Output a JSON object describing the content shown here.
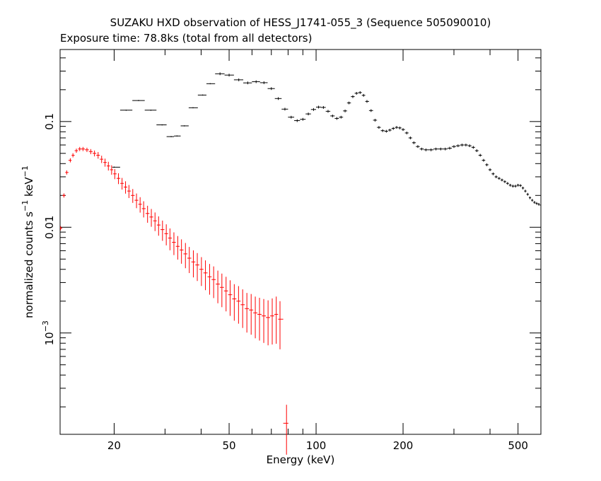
{
  "chart_data": {
    "type": "scatter",
    "title": "SUZAKU HXD observation of HESS_J1741-055_3 (Sequence 505090010)",
    "subtitle": "Exposure time: 78.8ks (total from all detectors)",
    "xlabel": "Energy (keV)",
    "ylabel": {
      "main": "normalized counts s",
      "exp1": "−1",
      "mid": " keV",
      "exp2": "−1"
    },
    "x_scale": "log",
    "y_scale": "log",
    "xlim": [
      13.0,
      600.0
    ],
    "ylim": [
      0.00011,
      0.48
    ],
    "x_ticks": [
      {
        "value": 20,
        "label": "20"
      },
      {
        "value": 50,
        "label": "50"
      },
      {
        "value": 100,
        "label": "100"
      },
      {
        "value": 200,
        "label": "200"
      },
      {
        "value": 500,
        "label": "500"
      }
    ],
    "y_ticks": [
      {
        "value": 0.1,
        "label": "0.1"
      },
      {
        "value": 0.01,
        "label": "0.01"
      },
      {
        "value": 0.001,
        "label_base": "10",
        "label_exp": "−3"
      }
    ],
    "grid": false,
    "colors": {
      "gso": "#000000",
      "pin": "#ff0000"
    },
    "series": [
      {
        "color": "#000000",
        "points": [
          [
            20.0,
            0.037
          ],
          [
            22.0,
            0.128
          ],
          [
            24.3,
            0.158
          ],
          [
            26.8,
            0.128
          ],
          [
            29.3,
            0.093
          ],
          [
            31.5,
            0.072
          ],
          [
            33.0,
            0.073
          ],
          [
            35.0,
            0.091
          ],
          [
            37.5,
            0.135
          ],
          [
            40.5,
            0.178
          ],
          [
            43.0,
            0.228
          ],
          [
            46.5,
            0.283
          ],
          [
            50.0,
            0.275
          ],
          [
            54.0,
            0.248
          ],
          [
            58.0,
            0.232
          ],
          [
            62.0,
            0.238
          ],
          [
            66.0,
            0.233
          ],
          [
            70.0,
            0.205
          ],
          [
            74.0,
            0.165
          ],
          [
            78.0,
            0.131
          ],
          [
            82.0,
            0.11
          ],
          [
            86.0,
            0.102
          ],
          [
            90.0,
            0.105
          ],
          [
            94.0,
            0.118
          ],
          [
            98.0,
            0.13
          ],
          [
            102.0,
            0.137
          ],
          [
            106.0,
            0.136
          ],
          [
            110.0,
            0.125
          ],
          [
            114.0,
            0.113
          ],
          [
            118.0,
            0.107
          ],
          [
            122.0,
            0.11
          ],
          [
            126.0,
            0.126
          ],
          [
            130.0,
            0.15
          ],
          [
            134.0,
            0.172
          ],
          [
            138.0,
            0.185
          ],
          [
            142.0,
            0.188
          ],
          [
            146.0,
            0.177
          ],
          [
            150.0,
            0.155
          ],
          [
            155.0,
            0.127
          ],
          [
            160.0,
            0.103
          ],
          [
            165.0,
            0.088
          ],
          [
            170.0,
            0.082
          ],
          [
            175.0,
            0.081
          ],
          [
            180.0,
            0.083
          ],
          [
            185.0,
            0.086
          ],
          [
            190.0,
            0.088
          ],
          [
            195.0,
            0.087
          ],
          [
            200.0,
            0.084
          ],
          [
            206.0,
            0.078
          ],
          [
            212.0,
            0.07
          ],
          [
            218.0,
            0.063
          ],
          [
            225.0,
            0.058
          ],
          [
            232.0,
            0.055
          ],
          [
            240.0,
            0.054
          ],
          [
            250.0,
            0.054
          ],
          [
            260.0,
            0.055
          ],
          [
            270.0,
            0.055
          ],
          [
            280.0,
            0.055
          ],
          [
            290.0,
            0.056
          ],
          [
            300.0,
            0.058
          ],
          [
            310.0,
            0.059
          ],
          [
            320.0,
            0.06
          ],
          [
            330.0,
            0.06
          ],
          [
            340.0,
            0.059
          ],
          [
            350.0,
            0.057
          ],
          [
            360.0,
            0.053
          ],
          [
            370.0,
            0.048
          ],
          [
            380.0,
            0.043
          ],
          [
            390.0,
            0.039
          ],
          [
            400.0,
            0.035
          ],
          [
            410.0,
            0.032
          ],
          [
            420.0,
            0.03
          ],
          [
            430.0,
            0.029
          ],
          [
            440.0,
            0.028
          ],
          [
            450.0,
            0.027
          ],
          [
            460.0,
            0.026
          ],
          [
            470.0,
            0.025
          ],
          [
            480.0,
            0.0245
          ],
          [
            490.0,
            0.0245
          ],
          [
            500.0,
            0.025
          ],
          [
            510.0,
            0.0248
          ],
          [
            520.0,
            0.0235
          ],
          [
            530.0,
            0.022
          ],
          [
            540.0,
            0.0205
          ],
          [
            550.0,
            0.019
          ],
          [
            560.0,
            0.018
          ],
          [
            570.0,
            0.0172
          ],
          [
            580.0,
            0.0168
          ],
          [
            590.0,
            0.0165
          ],
          [
            600.0,
            0.0162
          ]
        ]
      },
      {
        "color": "#ff0000",
        "points": [
          [
            13.05,
            0.0098
          ],
          [
            13.4,
            0.02
          ],
          [
            13.7,
            0.033
          ],
          [
            14.1,
            0.043
          ],
          [
            14.4,
            0.048
          ],
          [
            14.8,
            0.053
          ],
          [
            15.2,
            0.055
          ],
          [
            15.6,
            0.055
          ],
          [
            16.1,
            0.054
          ],
          [
            16.6,
            0.052
          ],
          [
            17.1,
            0.05
          ],
          [
            17.6,
            0.048
          ],
          [
            18.1,
            0.044
          ],
          [
            18.6,
            0.041
          ],
          [
            19.1,
            0.038
          ],
          [
            19.6,
            0.035
          ],
          [
            20.1,
            0.032
          ],
          [
            20.7,
            0.029
          ],
          [
            21.3,
            0.026
          ],
          [
            21.9,
            0.024
          ],
          [
            22.5,
            0.022
          ],
          [
            23.2,
            0.02
          ],
          [
            23.9,
            0.018
          ],
          [
            24.6,
            0.0165
          ],
          [
            25.3,
            0.015
          ],
          [
            26.1,
            0.0135
          ],
          [
            26.9,
            0.0125
          ],
          [
            27.7,
            0.0115
          ],
          [
            28.5,
            0.0105
          ],
          [
            29.4,
            0.0095
          ],
          [
            30.3,
            0.0087
          ],
          [
            31.2,
            0.0079
          ],
          [
            32.2,
            0.0072
          ],
          [
            33.2,
            0.0066
          ],
          [
            34.2,
            0.0061
          ],
          [
            35.3,
            0.0056
          ],
          [
            36.4,
            0.0051
          ],
          [
            37.6,
            0.0047
          ],
          [
            38.8,
            0.0044
          ],
          [
            40.1,
            0.004
          ],
          [
            41.4,
            0.0037
          ],
          [
            42.8,
            0.0034
          ],
          [
            44.2,
            0.0032
          ],
          [
            45.7,
            0.0029
          ],
          [
            47.2,
            0.0027
          ],
          [
            48.8,
            0.0025
          ],
          [
            50.4,
            0.0023
          ],
          [
            52.1,
            0.0021
          ],
          [
            53.9,
            0.002
          ],
          [
            55.7,
            0.00185
          ],
          [
            57.6,
            0.0017
          ],
          [
            59.6,
            0.00165
          ],
          [
            61.6,
            0.00155
          ],
          [
            63.7,
            0.0015
          ],
          [
            65.9,
            0.00145
          ],
          [
            68.2,
            0.0014
          ],
          [
            70.5,
            0.00145
          ],
          [
            72.8,
            0.0015
          ],
          [
            75.0,
            0.00135
          ],
          [
            79.0,
            0.00014
          ]
        ]
      }
    ]
  }
}
